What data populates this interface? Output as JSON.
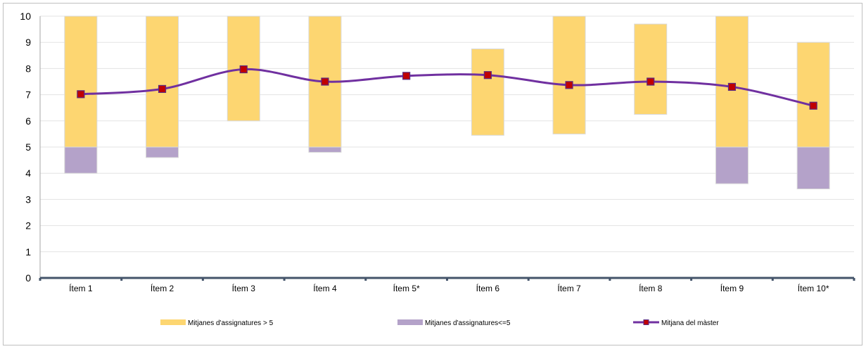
{
  "chart_data": {
    "type": "bar",
    "stacking": "floating-range",
    "categories": [
      "Ítem 1",
      "Ítem 2",
      "Ítem 3",
      "Ítem 4",
      "Ítem 5*",
      "Ítem 6",
      "Ítem 7",
      "Ítem 8",
      "Ítem 9",
      "Ítem 10*"
    ],
    "series": [
      {
        "name": "Mitjanes d'assignatures > 5",
        "kind": "range-bar",
        "color": "#fdd671",
        "low": [
          5,
          5,
          6,
          5,
          null,
          5.45,
          5.5,
          6.25,
          5,
          5
        ],
        "high": [
          10,
          10,
          10,
          10,
          null,
          8.75,
          10,
          9.7,
          10,
          9
        ]
      },
      {
        "name": "Mitjanes d'assignatures<=5",
        "kind": "range-bar",
        "color": "#b4a2c9",
        "low": [
          4.0,
          4.6,
          null,
          4.8,
          null,
          null,
          null,
          null,
          3.6,
          3.4
        ],
        "high": [
          5,
          5,
          null,
          5,
          null,
          null,
          null,
          null,
          5,
          5
        ]
      },
      {
        "name": "Mitjana del màster",
        "kind": "line",
        "color": "#7030a0",
        "marker_color": "#c00000",
        "smooth": true,
        "values": [
          7.02,
          7.22,
          7.97,
          7.5,
          7.72,
          7.75,
          7.37,
          7.5,
          7.3,
          6.58
        ]
      }
    ],
    "yticks": [
      "0",
      "1",
      "2",
      "3",
      "4",
      "5",
      "6",
      "7",
      "8",
      "9",
      "10"
    ],
    "ylim": [
      0,
      10
    ],
    "grid": true,
    "legend_position": "bottom"
  }
}
